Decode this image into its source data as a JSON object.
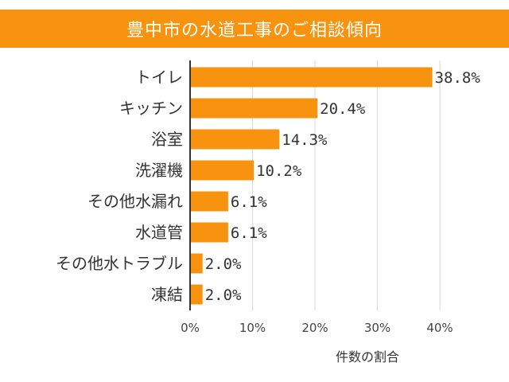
{
  "colors": {
    "accent": "#f7930f",
    "bar": "#f7930f",
    "grid": "#d9d9d9",
    "axis": "#333333",
    "title_text": "#ffffff"
  },
  "chart_data": {
    "type": "bar",
    "orientation": "horizontal",
    "title": "豊中市の水道工事のご相談傾向",
    "xlabel": "件数の割合",
    "ylabel": "",
    "categories": [
      "トイレ",
      "キッチン",
      "浴室",
      "洗濯機",
      "その他水漏れ",
      "水道管",
      "その他水トラブル",
      "凍結"
    ],
    "values": [
      38.8,
      20.4,
      14.3,
      10.2,
      6.1,
      6.1,
      2.0,
      2.0
    ],
    "value_labels": [
      "38.8%",
      "20.4%",
      "14.3%",
      "10.2%",
      "6.1%",
      "6.1%",
      "2.0%",
      "2.0%"
    ],
    "xlim": [
      0,
      40
    ],
    "xticks": [
      0,
      10,
      20,
      30,
      40
    ],
    "xtick_labels": [
      "0%",
      "10%",
      "20%",
      "30%",
      "40%"
    ],
    "grid": true,
    "legend": "none"
  }
}
